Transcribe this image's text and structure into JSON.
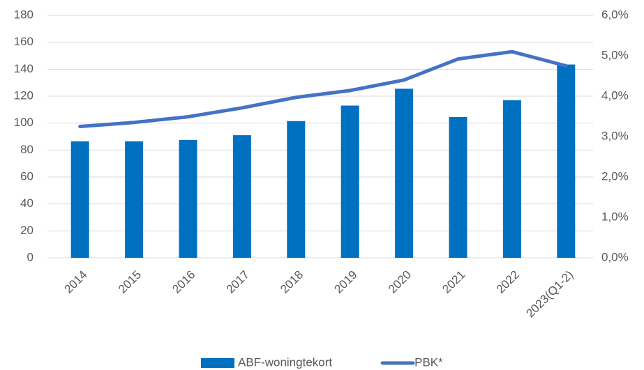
{
  "chart_data": {
    "type": "bar_line",
    "categories": [
      "2014",
      "2015",
      "2016",
      "2017",
      "2018",
      "2019",
      "2020",
      "2021",
      "2022",
      "2023(Q1-2)"
    ],
    "series": [
      {
        "name": "ABF-woningtekort",
        "type": "bar",
        "color": "#0070c0",
        "values": [
          86.5,
          86.5,
          87.5,
          91,
          101.5,
          113,
          125.5,
          104.5,
          117,
          143.5
        ]
      },
      {
        "name": "PBK*",
        "type": "line",
        "axis": "y2",
        "color": "#4472c4",
        "values": [
          3.25,
          3.35,
          3.49,
          3.71,
          3.97,
          4.14,
          4.4,
          4.92,
          5.1,
          4.75
        ]
      }
    ],
    "ylim": [
      0,
      180
    ],
    "yticks": [
      0,
      20,
      40,
      60,
      80,
      100,
      120,
      140,
      160,
      180
    ],
    "y2lim": [
      0,
      6
    ],
    "y2ticks": [
      {
        "value": 0,
        "label": "0,0%"
      },
      {
        "value": 1,
        "label": "1,0%"
      },
      {
        "value": 2,
        "label": "2,0%"
      },
      {
        "value": 3,
        "label": "3,0%"
      },
      {
        "value": 4,
        "label": "4,0%"
      },
      {
        "value": 5,
        "label": "5,0%"
      },
      {
        "value": 6,
        "label": "6,0%"
      }
    ],
    "grid": true,
    "legend": "bottom"
  }
}
